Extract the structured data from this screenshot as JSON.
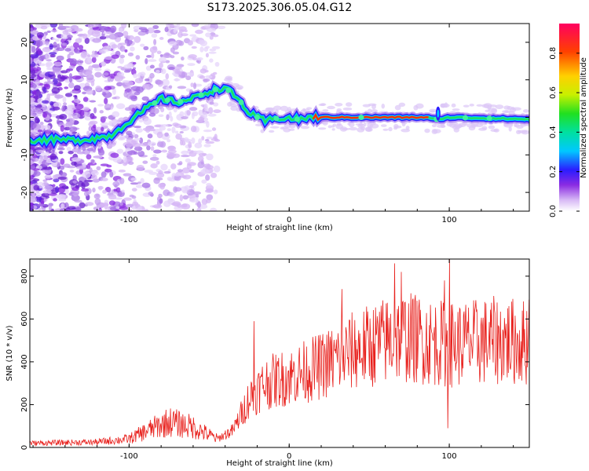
{
  "title": "S173.2025.306.05.04.G12",
  "chart_data": [
    {
      "type": "heatmap",
      "xlabel": "Height of straight line (km)",
      "ylabel": "Frequency (Hz)",
      "xlim": [
        -162,
        150
      ],
      "ylim": [
        -25,
        25
      ],
      "xticks": [
        -100,
        0,
        100
      ],
      "yticks": [
        -20,
        -10,
        0,
        10,
        20
      ],
      "ridge": [
        {
          "x": -162,
          "y": -6
        },
        {
          "x": -130,
          "y": -6
        },
        {
          "x": -112,
          "y": -5
        },
        {
          "x": -100,
          "y": -1
        },
        {
          "x": -90,
          "y": 2
        },
        {
          "x": -80,
          "y": 5
        },
        {
          "x": -70,
          "y": 4
        },
        {
          "x": -60,
          "y": 5
        },
        {
          "x": -50,
          "y": 7
        },
        {
          "x": -40,
          "y": 8
        },
        {
          "x": -30,
          "y": 4
        },
        {
          "x": -25,
          "y": 1
        },
        {
          "x": -15,
          "y": -1
        },
        {
          "x": -5,
          "y": 0
        },
        {
          "x": 5,
          "y": -0.5
        },
        {
          "x": 15,
          "y": 0
        },
        {
          "x": 60,
          "y": 0
        },
        {
          "x": 85,
          "y": 0
        },
        {
          "x": 92,
          "y": -0.5
        },
        {
          "x": 100,
          "y": 0
        },
        {
          "x": 150,
          "y": -0.5
        }
      ],
      "colorbar": {
        "label": "Normalized spectral amplitude",
        "ticks": [
          0.0,
          0.2,
          0.4,
          0.6,
          0.8
        ],
        "range": [
          0,
          0.95
        ]
      }
    },
    {
      "type": "line",
      "xlabel": "Height of straight line (km)",
      "ylabel": "SNR (10 * v/v)",
      "xlim": [
        -162,
        150
      ],
      "ylim": [
        0,
        880
      ],
      "xticks": [
        -100,
        0,
        100
      ],
      "yticks": [
        0,
        200,
        400,
        600,
        800
      ],
      "color": "#e8201c",
      "envelope": [
        {
          "x": -162,
          "y": 20
        },
        {
          "x": -120,
          "y": 25
        },
        {
          "x": -100,
          "y": 40
        },
        {
          "x": -85,
          "y": 90
        },
        {
          "x": -75,
          "y": 120
        },
        {
          "x": -60,
          "y": 95
        },
        {
          "x": -45,
          "y": 40
        },
        {
          "x": -35,
          "y": 80
        },
        {
          "x": -25,
          "y": 230
        },
        {
          "x": -15,
          "y": 300
        },
        {
          "x": 0,
          "y": 330
        },
        {
          "x": 20,
          "y": 380
        },
        {
          "x": 40,
          "y": 450
        },
        {
          "x": 70,
          "y": 520
        },
        {
          "x": 100,
          "y": 480
        },
        {
          "x": 130,
          "y": 500
        },
        {
          "x": 150,
          "y": 490
        }
      ],
      "spikes": [
        {
          "x": -22,
          "y": 590
        },
        {
          "x": 33,
          "y": 740
        },
        {
          "x": 66,
          "y": 860
        },
        {
          "x": 70,
          "y": 820
        },
        {
          "x": 97,
          "y": 780
        },
        {
          "x": 99,
          "y": 90
        },
        {
          "x": 100,
          "y": 880
        },
        {
          "x": 150,
          "y": 690
        }
      ]
    }
  ]
}
